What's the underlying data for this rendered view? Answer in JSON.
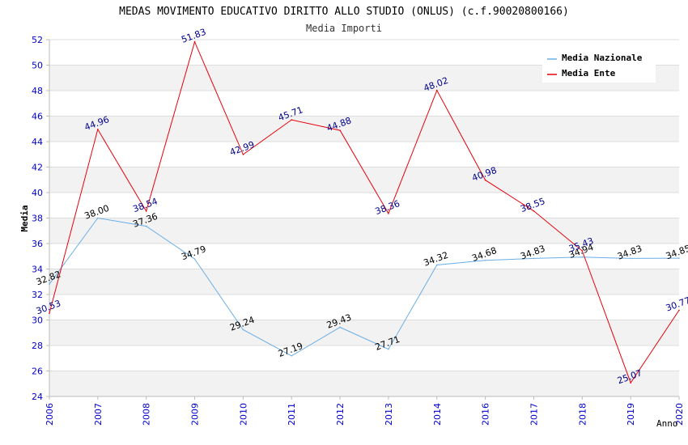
{
  "chart_data": {
    "type": "line",
    "title": "MEDAS MOVIMENTO EDUCATIVO DIRITTO ALLO STUDIO (ONLUS) (c.f.90020800166)",
    "subtitle": "Media Importi",
    "xlabel": "Anno",
    "ylabel": "Media",
    "ylim": [
      24,
      52
    ],
    "yticks": [
      "24",
      "26",
      "28",
      "30",
      "32",
      "34",
      "36",
      "38",
      "40",
      "42",
      "44",
      "46",
      "48",
      "50",
      "52"
    ],
    "categories": [
      "2006",
      "2007",
      "2008",
      "2009",
      "2010",
      "2011",
      "2012",
      "2013",
      "2014",
      "2016",
      "2017",
      "2018",
      "2019",
      "2020"
    ],
    "grid": true,
    "legend_position": "top-right",
    "series": [
      {
        "name": "Media Nazionale",
        "color": "#6aaee6",
        "label_color": "#000000",
        "values": [
          32.82,
          38.0,
          37.36,
          34.79,
          29.24,
          27.19,
          29.43,
          27.71,
          34.32,
          34.68,
          34.83,
          34.94,
          34.83,
          34.85
        ],
        "labels": [
          "32.82",
          "38.00",
          "37.36",
          "34.79",
          "29.24",
          "27.19",
          "29.43",
          "27.71",
          "34.32",
          "34.68",
          "34.83",
          "34.94",
          "34.83",
          "34.85"
        ]
      },
      {
        "name": "Media Ente",
        "color": "#e8000b",
        "label_color": "#00008b",
        "values": [
          30.53,
          44.96,
          38.54,
          51.83,
          42.99,
          45.71,
          44.88,
          38.36,
          48.02,
          40.98,
          38.55,
          35.43,
          25.07,
          30.77
        ],
        "labels": [
          "30.53",
          "44.96",
          "38.54",
          "51.83",
          "42.99",
          "45.71",
          "44.88",
          "38.36",
          "48.02",
          "40.98",
          "38.55",
          "35.43",
          "25.07",
          "30.77"
        ]
      }
    ]
  }
}
